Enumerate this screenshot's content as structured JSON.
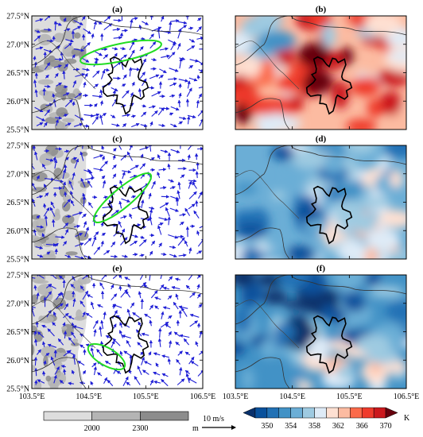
{
  "panels": [
    {
      "id": "a",
      "label": "(a)",
      "kind": "wind"
    },
    {
      "id": "b",
      "label": "(b)",
      "kind": "temp"
    },
    {
      "id": "c",
      "label": "(c)",
      "kind": "wind"
    },
    {
      "id": "d",
      "label": "(d)",
      "kind": "temp"
    },
    {
      "id": "e",
      "label": "(e)",
      "kind": "wind"
    },
    {
      "id": "f",
      "label": "(f)",
      "kind": "temp"
    }
  ],
  "axes": {
    "lat_ticks": [
      "27.5°N",
      "27.0°N",
      "26.5°N",
      "26.0°N",
      "25.5°N"
    ],
    "lon_ticks": [
      "103.5°E",
      "104.5°E",
      "105.5°E",
      "106.5°E"
    ]
  },
  "terrain_legend": {
    "labels": [
      "2000",
      "2300"
    ],
    "unit": "m",
    "colors": [
      "#ffffff",
      "#dddddd",
      "#b4b4b4",
      "#8c8c8c"
    ]
  },
  "wind_reference": {
    "label": "10 m/s",
    "color": "#1f1fd6"
  },
  "temp_legend": {
    "labels": [
      "350",
      "354",
      "358",
      "362",
      "366",
      "370"
    ],
    "unit": "K",
    "colors": [
      "#08306b",
      "#08519c",
      "#2171b5",
      "#4292c6",
      "#6baed6",
      "#9ecae1",
      "#deebf7",
      "#fee0d2",
      "#fcbba1",
      "#fb6a4a",
      "#ef3b2c",
      "#cb181d",
      "#67000d"
    ]
  },
  "highlight_color": "#22dd22"
}
